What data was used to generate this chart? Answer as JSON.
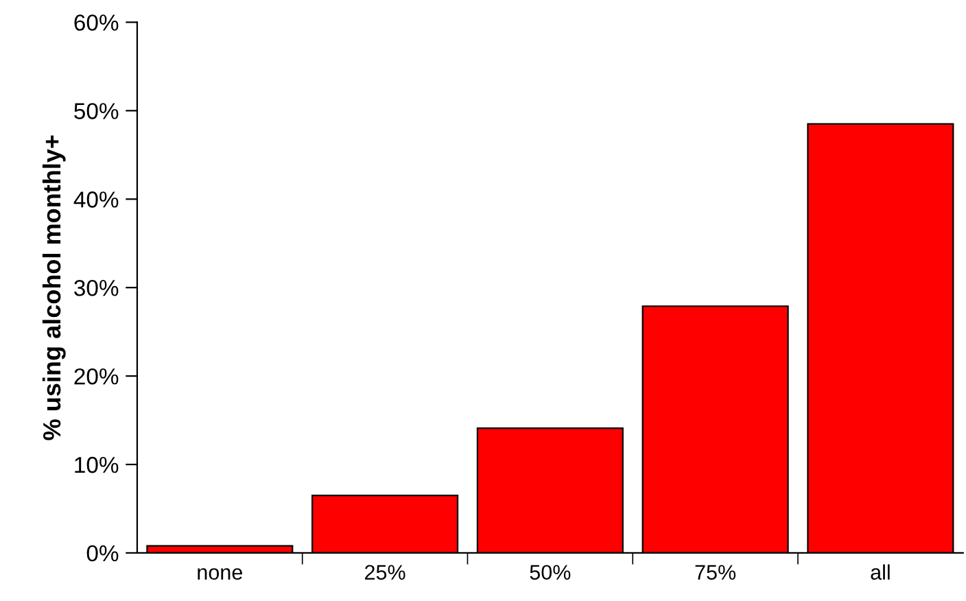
{
  "chart_data": {
    "type": "bar",
    "ylabel": "% using alcohol monthly+",
    "categories": [
      "none",
      "25%",
      "50%",
      "75%",
      "all"
    ],
    "values": [
      0.8,
      6.5,
      14.1,
      27.9,
      48.5
    ],
    "color": "#ff0000",
    "ylim": [
      0,
      60
    ],
    "yticks": [
      {
        "value": 0,
        "label": "0%"
      },
      {
        "value": 10,
        "label": "10%"
      },
      {
        "value": 20,
        "label": "20%"
      },
      {
        "value": 30,
        "label": "30%"
      },
      {
        "value": 40,
        "label": "40%"
      },
      {
        "value": 50,
        "label": "50%"
      },
      {
        "value": 60,
        "label": "60%"
      }
    ],
    "grid": false,
    "legend": false
  }
}
